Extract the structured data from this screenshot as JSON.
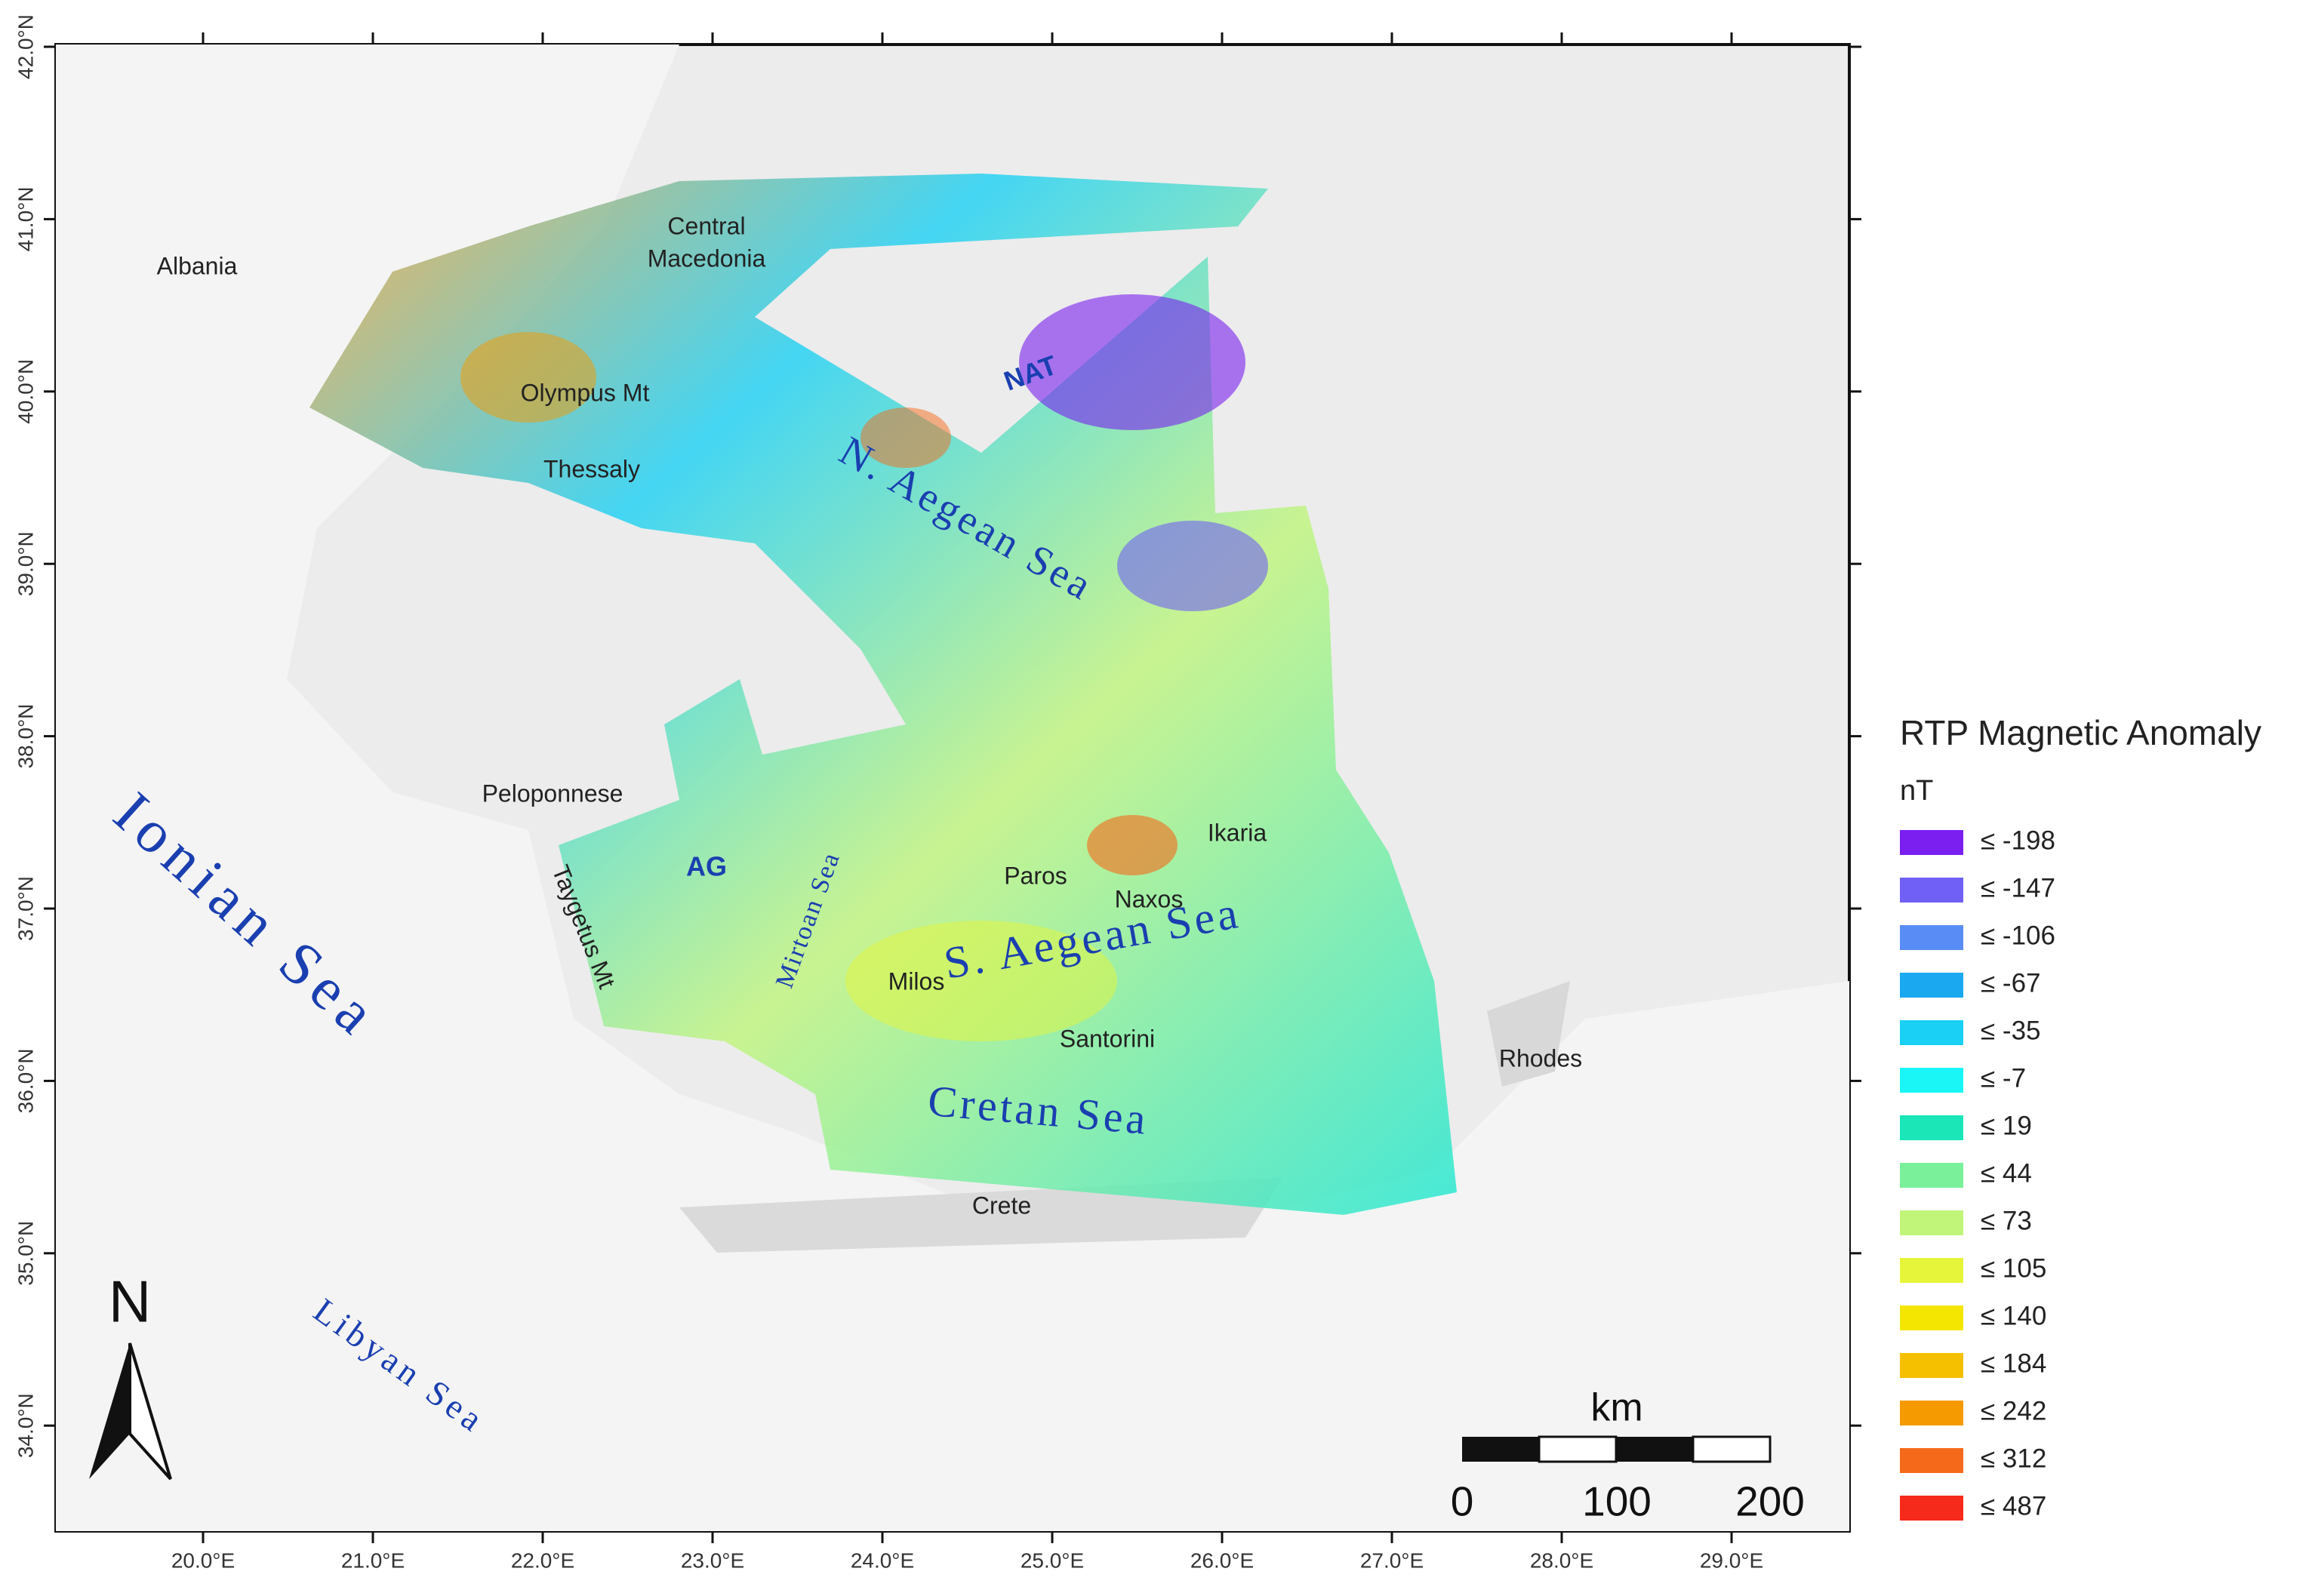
{
  "map": {
    "lon_ticks": [
      "20.0°E",
      "21.0°E",
      "22.0°E",
      "23.0°E",
      "24.0°E",
      "25.0°E",
      "26.0°E",
      "27.0°E",
      "28.0°E",
      "29.0°E"
    ],
    "lat_ticks": [
      "42.0°N",
      "41.0°N",
      "40.0°N",
      "39.0°N",
      "38.0°N",
      "37.0°N",
      "36.0°N",
      "35.0°N",
      "34.0°N"
    ],
    "places": [
      "Albania",
      [
        "Central",
        "Macedonia"
      ],
      "Olympus Mt",
      "Thessaly",
      "NAT",
      "N. Aegean Sea",
      "Peloponnese",
      "AG",
      "Taygetus Mt",
      "Mirtoan Sea",
      "Ikaria",
      "Paros",
      "Naxos",
      "S. Aegean Sea",
      "Milos",
      "Santorini",
      "Rhodes",
      "Cretan Sea",
      "Crete",
      "Ionian Sea",
      "Libyan Sea"
    ],
    "north": "N",
    "scale_bar": {
      "unit": "km",
      "labels": [
        "0",
        "100",
        "200"
      ]
    }
  },
  "legend": {
    "title": "RTP Magnetic Anomaly",
    "unit": "nT",
    "items": [
      {
        "label": "≤ -198",
        "color": "#7a1ff0"
      },
      {
        "label": "≤ -147",
        "color": "#7060f5"
      },
      {
        "label": "≤ -106",
        "color": "#5a8cf5"
      },
      {
        "label": "≤ -67",
        "color": "#1aa8f0"
      },
      {
        "label": "≤ -35",
        "color": "#1ad0f5"
      },
      {
        "label": "≤ -7",
        "color": "#1af5f5"
      },
      {
        "label": "≤ 19",
        "color": "#1ae6b8"
      },
      {
        "label": "≤ 44",
        "color": "#7af09a"
      },
      {
        "label": "≤ 73",
        "color": "#c0f57a"
      },
      {
        "label": "≤ 105",
        "color": "#e6f53a"
      },
      {
        "label": "≤ 140",
        "color": "#f5e600"
      },
      {
        "label": "≤ 184",
        "color": "#f5c000"
      },
      {
        "label": "≤ 242",
        "color": "#f59a00"
      },
      {
        "label": "≤ 312",
        "color": "#f56a1a"
      },
      {
        "label": "≤ 487",
        "color": "#f52a1a"
      }
    ]
  }
}
